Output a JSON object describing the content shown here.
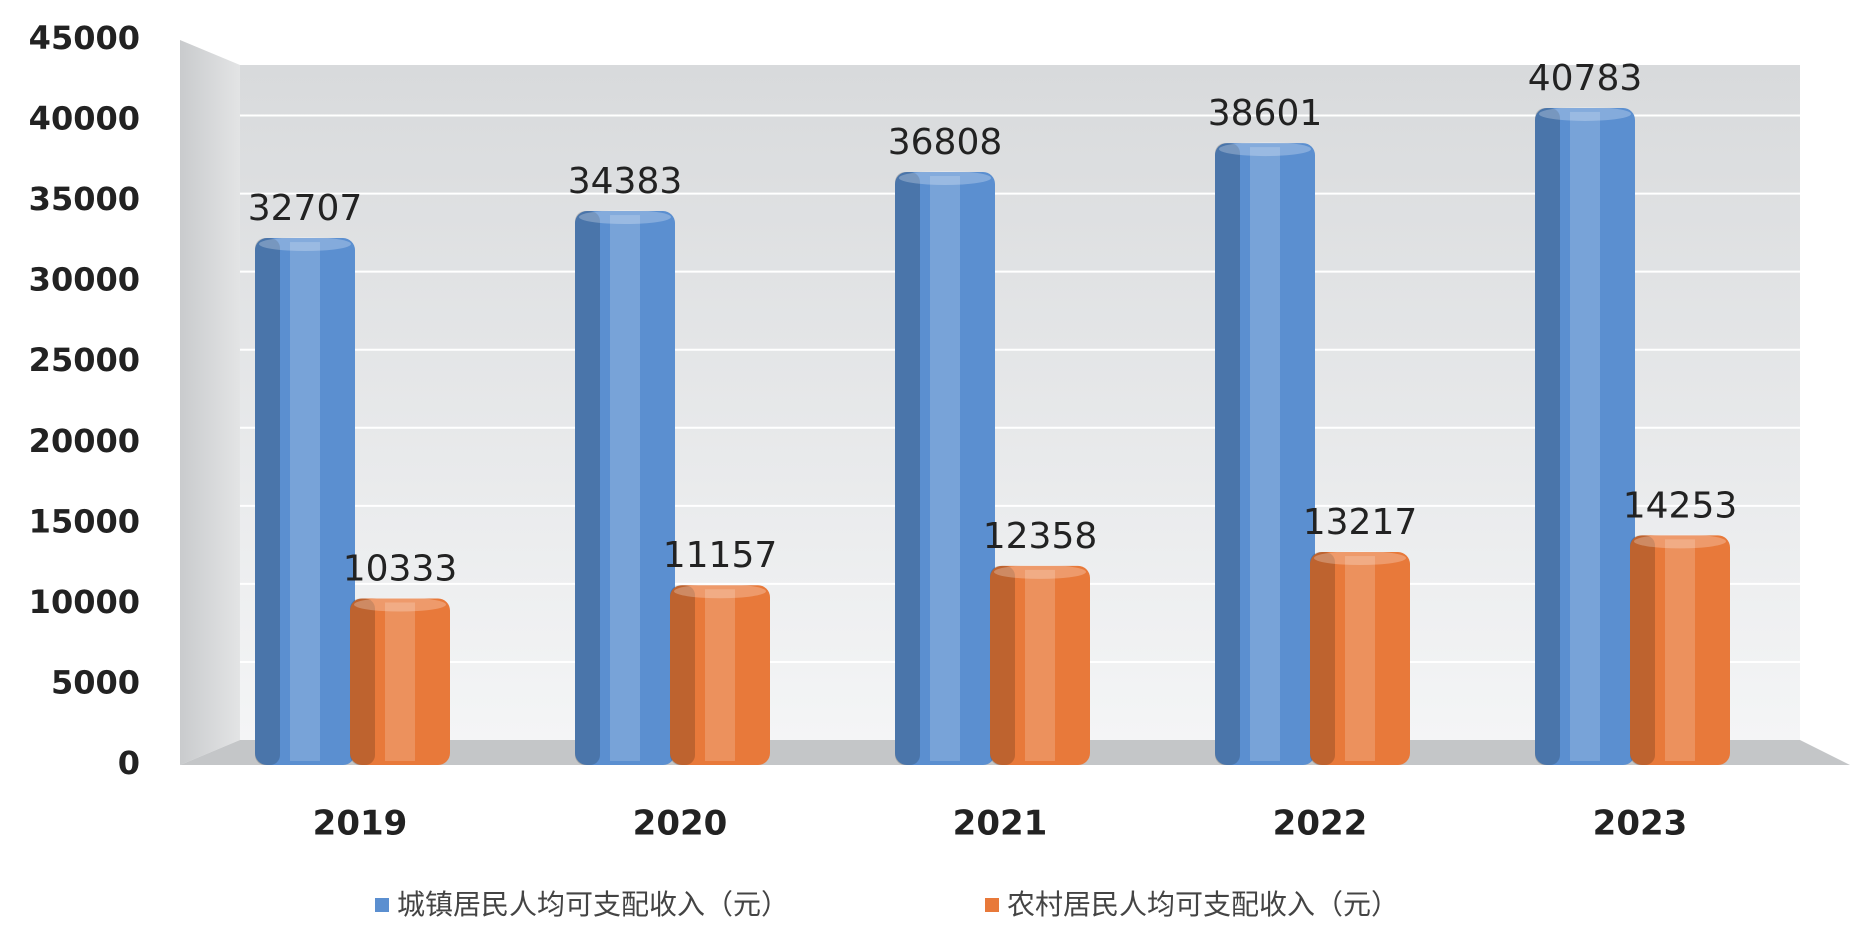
{
  "chart_data": {
    "type": "bar",
    "categories": [
      "2019",
      "2020",
      "2021",
      "2022",
      "2023"
    ],
    "series": [
      {
        "name": "城镇居民人均可支配收入（元）",
        "color": "#5b8fd0",
        "values": [
          32707,
          34383,
          36808,
          38601,
          40783
        ]
      },
      {
        "name": "农村居民人均可支配收入（元）",
        "color": "#e8793a",
        "values": [
          10333,
          11157,
          12358,
          13217,
          14253
        ]
      }
    ],
    "ylim": [
      0,
      45000
    ],
    "yticks": [
      0,
      5000,
      10000,
      15000,
      20000,
      25000,
      30000,
      35000,
      40000,
      45000
    ],
    "grid": true
  }
}
